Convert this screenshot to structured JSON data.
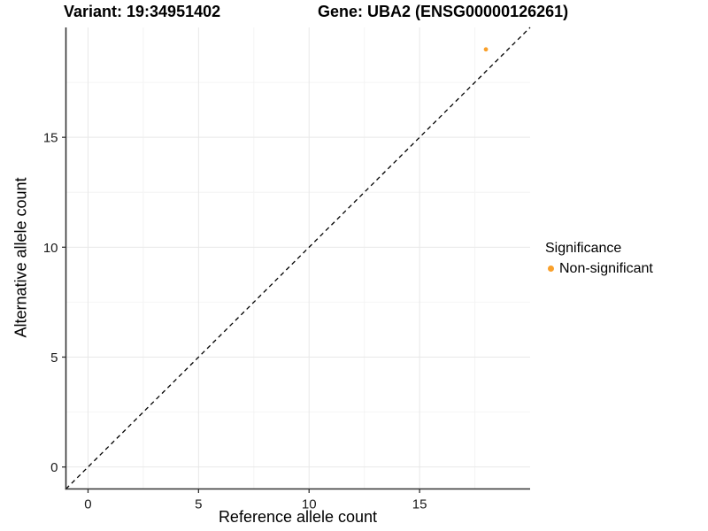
{
  "figure": {
    "background": "#FFFFFF"
  },
  "chart_data": {
    "type": "scatter",
    "title_left": "Variant: 19:34951402",
    "title_right": "Gene: UBA2 (ENSG00000126261)",
    "xlabel": "Reference allele count",
    "ylabel": "Alternative allele count",
    "xlim": [
      -1,
      20
    ],
    "ylim": [
      -1,
      20
    ],
    "x_breaks": [
      0,
      5,
      10,
      15
    ],
    "y_breaks": [
      0,
      5,
      10,
      15
    ],
    "x_minor_breaks": [
      2.5,
      7.5,
      12.5,
      17.5
    ],
    "y_minor_breaks": [
      2.5,
      7.5,
      12.5,
      17.5
    ],
    "grid": "major+minor",
    "series": [
      {
        "name": "Non-significant",
        "color": "#F9A02B",
        "points": [
          {
            "x": 18,
            "y": 19
          }
        ]
      }
    ],
    "reference_line": {
      "kind": "identity",
      "slope": 1,
      "intercept": 0,
      "style": "dashed",
      "color": "#000000"
    },
    "legend": {
      "title": "Significance",
      "position": "right",
      "entries": [
        {
          "label": "Non-significant",
          "color": "#F9A02B"
        }
      ]
    },
    "colors": {
      "grid_major": "#E8E8E8",
      "grid_minor": "#F4F4F4",
      "axis": "#333333",
      "tick_text": "#1A1A1A"
    }
  }
}
